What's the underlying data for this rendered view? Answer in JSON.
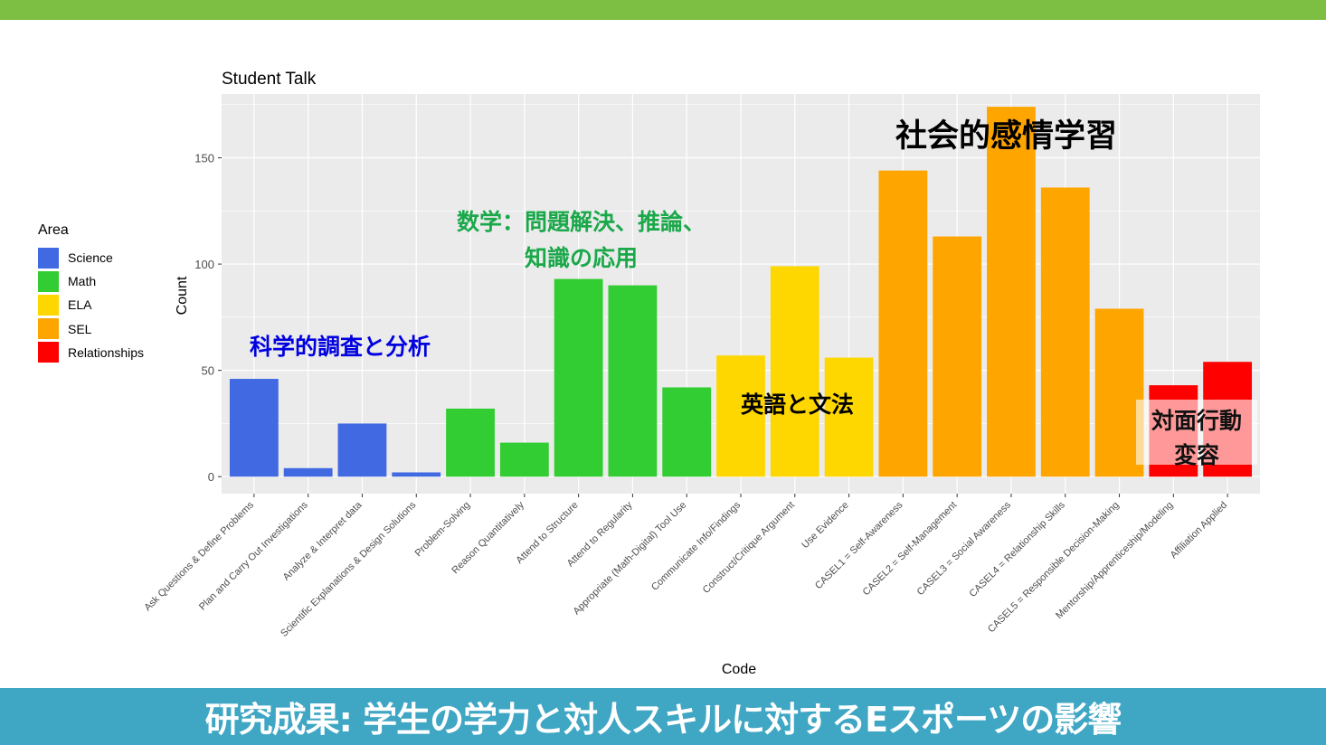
{
  "colors": {
    "top_bar": "#7cbf42",
    "bottom_bar": "#3fa6c4",
    "panel": "#ebebeb"
  },
  "footer": {
    "title": "研究成果: 学生の学力と対人スキルに対するEスポーツの影響"
  },
  "chart_data": {
    "type": "bar",
    "title": "Student Talk",
    "xlabel": "Code",
    "ylabel": "Count",
    "ylim": [
      -8,
      180
    ],
    "yticks": [
      0,
      50,
      100,
      150
    ],
    "legend": {
      "title": "Area",
      "position": "left",
      "entries": [
        {
          "name": "Science",
          "color": "#4169e1"
        },
        {
          "name": "Math",
          "color": "#32cd32"
        },
        {
          "name": "ELA",
          "color": "#ffd700"
        },
        {
          "name": "SEL",
          "color": "#ffa500"
        },
        {
          "name": "Relationships",
          "color": "#ff0000"
        }
      ]
    },
    "bars": [
      {
        "category": "Ask Questions & Define Problems",
        "value": 46,
        "area": "Science"
      },
      {
        "category": "Plan and Carry Out Investigations",
        "value": 4,
        "area": "Science"
      },
      {
        "category": "Analyze & Interpret data",
        "value": 25,
        "area": "Science"
      },
      {
        "category": "Scientific Explanations & Design Solutions",
        "value": 2,
        "area": "Science"
      },
      {
        "category": "Problem-Solving",
        "value": 32,
        "area": "Math"
      },
      {
        "category": "Reason Quantitatively",
        "value": 16,
        "area": "Math"
      },
      {
        "category": "Attend to Structure",
        "value": 93,
        "area": "Math"
      },
      {
        "category": "Attend to Regularity",
        "value": 90,
        "area": "Math"
      },
      {
        "category": "Appropriate (Math-Digital) Tool Use",
        "value": 42,
        "area": "Math"
      },
      {
        "category": "Communicate Info/Findings",
        "value": 57,
        "area": "ELA"
      },
      {
        "category": "Construct/Critique Argument",
        "value": 99,
        "area": "ELA"
      },
      {
        "category": "Use Evidence",
        "value": 56,
        "area": "ELA"
      },
      {
        "category": "CASEL1 = Self-Awareness",
        "value": 144,
        "area": "SEL"
      },
      {
        "category": "CASEL2 = Self-Management",
        "value": 113,
        "area": "SEL"
      },
      {
        "category": "CASEL3 = Social Awareness",
        "value": 174,
        "area": "SEL"
      },
      {
        "category": "CASEL4 = Relationship Skills",
        "value": 136,
        "area": "SEL"
      },
      {
        "category": "CASEL5 = Responsible Decision-Making",
        "value": 79,
        "area": "SEL"
      },
      {
        "category": "Mentorship/Apprenticeship/Modeling",
        "value": 43,
        "area": "Relationships"
      },
      {
        "category": "Affiliation Applied",
        "value": 54,
        "area": "Relationships"
      }
    ],
    "annotations": {
      "science": "科学的調査と分析",
      "math_line1": "数学：問題解決、推論、",
      "math_line2": "知識の応用",
      "ela": "英語と文法",
      "sel": "社会的感情学習",
      "relationships_line1": "対面行動",
      "relationships_line2": "変容"
    }
  }
}
